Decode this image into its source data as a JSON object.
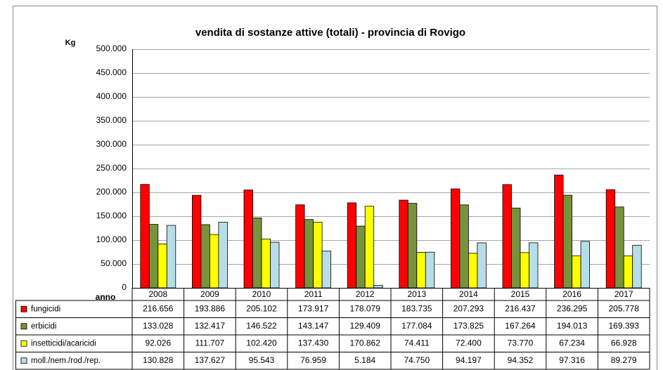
{
  "chart_data": {
    "type": "bar",
    "title": "vendita di sostanze attive (totali) - provincia di Rovigo",
    "y_label": "Kg",
    "x_label": "anno",
    "categories": [
      "2008",
      "2009",
      "2010",
      "2011",
      "2012",
      "2013",
      "2014",
      "2015",
      "2016",
      "2017"
    ],
    "series": [
      {
        "name": "fungicidi",
        "color": "#ff0000",
        "values": [
          216656,
          193886,
          205102,
          173917,
          178079,
          183735,
          207293,
          216437,
          236295,
          205778
        ],
        "value_labels": [
          "216.656",
          "193.886",
          "205.102",
          "173.917",
          "178.079",
          "183.735",
          "207.293",
          "216.437",
          "236.295",
          "205.778"
        ]
      },
      {
        "name": "erbicidi",
        "color": "#77933c",
        "values": [
          133028,
          132417,
          146522,
          143147,
          129409,
          177084,
          173825,
          167264,
          194013,
          169393
        ],
        "value_labels": [
          "133.028",
          "132.417",
          "146.522",
          "143.147",
          "129.409",
          "177.084",
          "173.825",
          "167.264",
          "194.013",
          "169.393"
        ]
      },
      {
        "name": "insetticidi/acaricidi",
        "color": "#ffff00",
        "values": [
          92026,
          111707,
          102420,
          137430,
          170862,
          74411,
          72400,
          73770,
          67234,
          66928
        ],
        "value_labels": [
          "92.026",
          "111.707",
          "102.420",
          "137.430",
          "170.862",
          "74.411",
          "72.400",
          "73.770",
          "67.234",
          "66.928"
        ]
      },
      {
        "name": "moll./nem./rod./rep.",
        "color": "#b7dee8",
        "values": [
          130828,
          137627,
          95543,
          76959,
          5184,
          74750,
          94197,
          94352,
          97316,
          89279
        ],
        "value_labels": [
          "130.828",
          "137.627",
          "95.543",
          "76.959",
          "5.184",
          "74.750",
          "94.197",
          "94.352",
          "97.316",
          "89.279"
        ]
      }
    ],
    "ylim": [
      0,
      500000
    ],
    "yticks": [
      0,
      {
        "value": 50000,
        "label": "50.000"
      },
      {
        "value": 100000,
        "label": "100.000"
      },
      {
        "value": 150000,
        "label": "150.000"
      },
      {
        "value": 200000,
        "label": "200.000"
      },
      {
        "value": 250000,
        "label": "250.000"
      },
      {
        "value": 300000,
        "label": "300.000"
      },
      {
        "value": 350000,
        "label": "350.000"
      },
      {
        "value": 400000,
        "label": "400.000"
      },
      {
        "value": 450000,
        "label": "450.000"
      },
      {
        "value": 500000,
        "label": "500.000"
      }
    ],
    "grid": true
  }
}
